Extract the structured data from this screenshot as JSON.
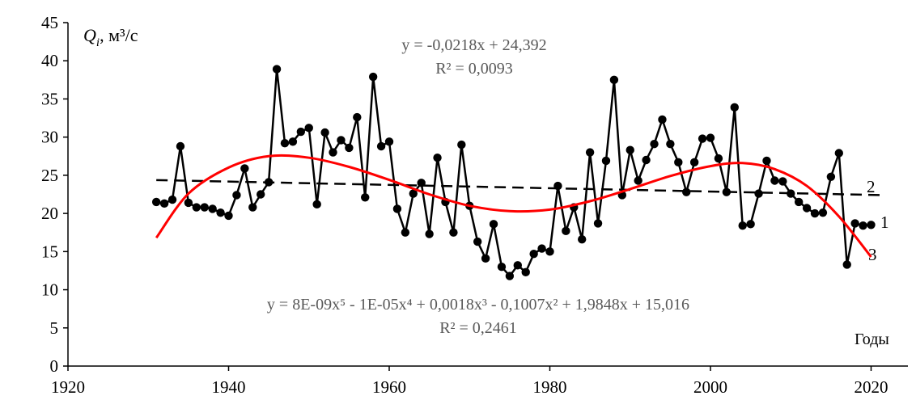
{
  "chart_data": {
    "type": "line",
    "ylabel": "Qi, м³/с",
    "ylabel_symbol": "Q",
    "ylabel_subscript": "i",
    "ylabel_unit": ", м³/с",
    "xlabel": "Годы",
    "xlim": [
      1920,
      2100
    ],
    "ylim": [
      0,
      45
    ],
    "x_ticks": [
      1920,
      1940,
      1960,
      1980,
      2000,
      2020
    ],
    "y_ticks": [
      0,
      5,
      10,
      15,
      20,
      25,
      30,
      35,
      40,
      45
    ],
    "grid": false,
    "colors": {
      "series": "#000000",
      "trend": "#000000",
      "poly": "#ff0000",
      "equation": "#595959"
    },
    "series": [
      {
        "label": "1",
        "x": [
          1931,
          1932,
          1933,
          1934,
          1935,
          1936,
          1937,
          1938,
          1939,
          1940,
          1941,
          1942,
          1943,
          1944,
          1945,
          1946,
          1947,
          1948,
          1949,
          1950,
          1951,
          1952,
          1953,
          1954,
          1955,
          1956,
          1957,
          1958,
          1959,
          1960,
          1961,
          1962,
          1963,
          1964,
          1965,
          1966,
          1967,
          1968,
          1969,
          1970,
          1971,
          1972,
          1973,
          1974,
          1975,
          1976,
          1977,
          1978,
          1979,
          1980,
          1981,
          1982,
          1983,
          1984,
          1985,
          1986,
          1987,
          1988,
          1989,
          1990,
          1991,
          1992,
          1993,
          1994,
          1995,
          1996,
          1997,
          1998,
          1999,
          2000,
          2001,
          2002,
          2003,
          2004,
          2005,
          2006,
          2007,
          2008,
          2009,
          2010,
          2011,
          2012,
          2013,
          2014,
          2015,
          2016,
          2017,
          2018,
          2019,
          2020
        ],
        "y": [
          21.5,
          21.3,
          21.8,
          28.8,
          21.4,
          20.8,
          20.8,
          20.6,
          20.1,
          19.7,
          22.4,
          25.9,
          20.8,
          22.5,
          24.1,
          38.9,
          29.2,
          29.4,
          30.7,
          31.2,
          21.2,
          30.6,
          28,
          29.6,
          28.6,
          32.6,
          22.1,
          37.9,
          28.8,
          29.4,
          20.6,
          17.5,
          22.6,
          24,
          17.3,
          27.3,
          21.5,
          17.5,
          29,
          21,
          16.3,
          14.1,
          18.6,
          13,
          11.8,
          13.2,
          12.3,
          14.7,
          15.4,
          15,
          23.6,
          17.7,
          20.8,
          16.6,
          28,
          18.7,
          26.9,
          37.5,
          22.4,
          28.3,
          24.3,
          27,
          29.1,
          32.3,
          29.1,
          26.7,
          22.8,
          26.7,
          29.8,
          29.9,
          27.2,
          22.8,
          33.9,
          18.4,
          18.6,
          22.6,
          26.9,
          24.3,
          24.2,
          22.6,
          21.5,
          20.7,
          20,
          20.1,
          24.8,
          27.9,
          13.3,
          18.7,
          18.4,
          18.5
        ]
      },
      {
        "label": "2",
        "kind": "linear trend",
        "equation": "y = -0,0218x + 24,392",
        "r2": "R² = 0,0093",
        "coefficients": {
          "slope": -0.0218,
          "intercept": 24.392
        }
      },
      {
        "label": "3",
        "kind": "polynomial trend",
        "equation": "y = 8E-09x⁵ - 1E-05x⁴ + 0,0018x³ - 0,1007x² + 1,9848x + 15,016",
        "r2": "R² = 0,2461",
        "x": [
          1931,
          1935,
          1940,
          1945,
          1950,
          1955,
          1960,
          1965,
          1970,
          1975,
          1980,
          1985,
          1990,
          1995,
          2000,
          2004,
          2008,
          2012,
          2016,
          2020
        ],
        "y": [
          16.8,
          22.6,
          26.0,
          27.5,
          27.3,
          26.1,
          24.4,
          22.5,
          21.0,
          20.3,
          20.5,
          21.6,
          23.2,
          24.9,
          26.2,
          26.6,
          25.8,
          23.6,
          19.6,
          14.3
        ]
      }
    ]
  }
}
